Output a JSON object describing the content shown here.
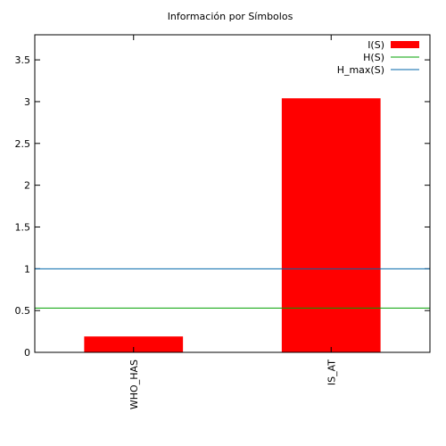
{
  "chart_data": {
    "type": "bar",
    "title": "Información por Símbolos",
    "xlabel": "",
    "ylabel": "",
    "categories": [
      "WHO_HAS",
      "IS_AT"
    ],
    "series": [
      {
        "name": "I(S)",
        "type": "bar",
        "values": [
          0.19,
          3.04
        ],
        "color": "#ff0000"
      },
      {
        "name": "H(S)",
        "type": "hline",
        "value": 0.53,
        "color": "#00a000"
      },
      {
        "name": "H_max(S)",
        "type": "hline",
        "value": 1.0,
        "color": "#0066aa"
      }
    ],
    "ylim": [
      0,
      3.8
    ],
    "yticks": [
      0,
      0.5,
      1,
      1.5,
      2,
      2.5,
      3,
      3.5
    ],
    "ytick_labels": [
      "0",
      "0.5",
      "1",
      "1.5",
      "2",
      "2.5",
      "3",
      "3.5"
    ],
    "grid": false,
    "legend_position": "top-right"
  }
}
